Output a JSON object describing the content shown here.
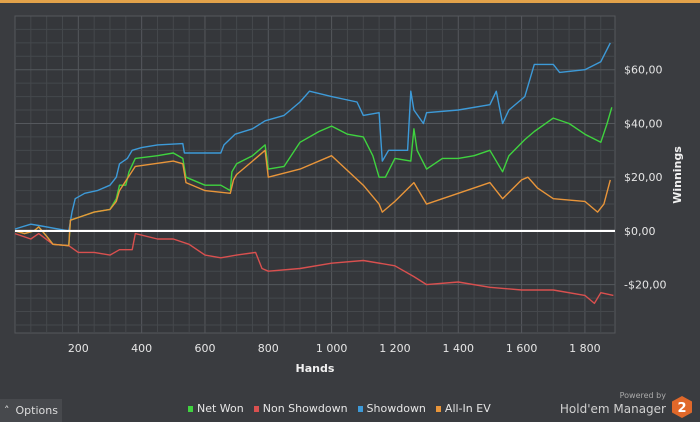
{
  "chart_data": {
    "type": "line",
    "title": "",
    "xlabel": "Hands",
    "ylabel": "Winnings",
    "xlim": [
      0,
      1895
    ],
    "ylim": [
      -38,
      80
    ],
    "x_ticks": [
      200,
      400,
      600,
      800,
      1000,
      1200,
      1400,
      1600,
      1800
    ],
    "x_tick_labels": [
      "200",
      "400",
      "600",
      "800",
      "1 000",
      "1 200",
      "1 400",
      "1 600",
      "1 800"
    ],
    "y_ticks": [
      -20,
      0,
      20,
      40,
      60
    ],
    "y_tick_labels": [
      "-$20,00",
      "$0,00",
      "$20,00",
      "$40,00",
      "$60,00"
    ],
    "grid": true,
    "legend_position": "bottom-center",
    "series": [
      {
        "name": "Net Won",
        "color": "#3fd33f",
        "points": [
          [
            0,
            0
          ],
          [
            30,
            -1
          ],
          [
            60,
            0
          ],
          [
            75,
            1.5
          ],
          [
            100,
            -2
          ],
          [
            120,
            -5
          ],
          [
            170,
            -5.5
          ],
          [
            175,
            4
          ],
          [
            200,
            5
          ],
          [
            250,
            7
          ],
          [
            300,
            8
          ],
          [
            320,
            12
          ],
          [
            330,
            17
          ],
          [
            350,
            17
          ],
          [
            360,
            22
          ],
          [
            380,
            27
          ],
          [
            450,
            28
          ],
          [
            500,
            29
          ],
          [
            530,
            27
          ],
          [
            540,
            20
          ],
          [
            600,
            17
          ],
          [
            650,
            17
          ],
          [
            680,
            15
          ],
          [
            685,
            22
          ],
          [
            700,
            25
          ],
          [
            750,
            28
          ],
          [
            790,
            32
          ],
          [
            800,
            23
          ],
          [
            850,
            24
          ],
          [
            900,
            33
          ],
          [
            960,
            37
          ],
          [
            1000,
            39
          ],
          [
            1050,
            36
          ],
          [
            1100,
            35
          ],
          [
            1130,
            28
          ],
          [
            1150,
            20
          ],
          [
            1170,
            20
          ],
          [
            1200,
            27
          ],
          [
            1250,
            26
          ],
          [
            1260,
            38
          ],
          [
            1270,
            30
          ],
          [
            1300,
            23
          ],
          [
            1350,
            27
          ],
          [
            1400,
            27
          ],
          [
            1450,
            28
          ],
          [
            1500,
            30
          ],
          [
            1540,
            22
          ],
          [
            1560,
            28
          ],
          [
            1610,
            34
          ],
          [
            1640,
            37
          ],
          [
            1700,
            42
          ],
          [
            1750,
            40
          ],
          [
            1800,
            36
          ],
          [
            1850,
            33
          ],
          [
            1870,
            40
          ],
          [
            1885,
            46
          ]
        ]
      },
      {
        "name": "Non Showdown",
        "color": "#d9504f",
        "points": [
          [
            0,
            -1
          ],
          [
            50,
            -3
          ],
          [
            75,
            -1
          ],
          [
            120,
            -5
          ],
          [
            170,
            -5.5
          ],
          [
            200,
            -8
          ],
          [
            250,
            -8
          ],
          [
            300,
            -9
          ],
          [
            330,
            -7
          ],
          [
            370,
            -7
          ],
          [
            380,
            -1
          ],
          [
            450,
            -3
          ],
          [
            500,
            -3
          ],
          [
            550,
            -5
          ],
          [
            600,
            -9
          ],
          [
            650,
            -10
          ],
          [
            700,
            -9
          ],
          [
            760,
            -8
          ],
          [
            780,
            -14
          ],
          [
            800,
            -15
          ],
          [
            900,
            -14
          ],
          [
            1000,
            -12
          ],
          [
            1100,
            -11
          ],
          [
            1200,
            -13
          ],
          [
            1260,
            -17
          ],
          [
            1300,
            -20
          ],
          [
            1400,
            -19
          ],
          [
            1500,
            -21
          ],
          [
            1600,
            -22
          ],
          [
            1700,
            -22
          ],
          [
            1800,
            -24
          ],
          [
            1830,
            -27
          ],
          [
            1850,
            -23
          ],
          [
            1890,
            -24
          ]
        ]
      },
      {
        "name": "Showdown",
        "color": "#3d9ad8",
        "points": [
          [
            0,
            0.7
          ],
          [
            50,
            2.5
          ],
          [
            75,
            2
          ],
          [
            170,
            0
          ],
          [
            180,
            7
          ],
          [
            190,
            12
          ],
          [
            220,
            14
          ],
          [
            260,
            15
          ],
          [
            300,
            17
          ],
          [
            320,
            20
          ],
          [
            330,
            25
          ],
          [
            355,
            27
          ],
          [
            370,
            30
          ],
          [
            400,
            31
          ],
          [
            450,
            32
          ],
          [
            530,
            32.5
          ],
          [
            535,
            29
          ],
          [
            650,
            29
          ],
          [
            660,
            32
          ],
          [
            695,
            36
          ],
          [
            750,
            38
          ],
          [
            790,
            41
          ],
          [
            850,
            43
          ],
          [
            900,
            48
          ],
          [
            930,
            52
          ],
          [
            1000,
            50
          ],
          [
            1080,
            48
          ],
          [
            1100,
            43
          ],
          [
            1150,
            44
          ],
          [
            1160,
            26
          ],
          [
            1180,
            30
          ],
          [
            1240,
            30
          ],
          [
            1250,
            52
          ],
          [
            1260,
            45
          ],
          [
            1290,
            40
          ],
          [
            1300,
            44
          ],
          [
            1400,
            45
          ],
          [
            1500,
            47
          ],
          [
            1520,
            52
          ],
          [
            1540,
            40
          ],
          [
            1560,
            45
          ],
          [
            1610,
            50
          ],
          [
            1640,
            62
          ],
          [
            1700,
            62
          ],
          [
            1720,
            59
          ],
          [
            1800,
            60
          ],
          [
            1850,
            63
          ],
          [
            1880,
            70
          ]
        ]
      },
      {
        "name": "All-In EV",
        "color": "#e8953a",
        "points": [
          [
            0,
            0
          ],
          [
            30,
            -1
          ],
          [
            60,
            0
          ],
          [
            75,
            1.5
          ],
          [
            100,
            -2
          ],
          [
            120,
            -5
          ],
          [
            170,
            -5.5
          ],
          [
            175,
            4
          ],
          [
            200,
            5
          ],
          [
            250,
            7
          ],
          [
            300,
            8
          ],
          [
            320,
            11
          ],
          [
            330,
            15
          ],
          [
            380,
            24
          ],
          [
            500,
            26
          ],
          [
            530,
            25
          ],
          [
            540,
            18
          ],
          [
            600,
            15
          ],
          [
            680,
            14
          ],
          [
            690,
            19
          ],
          [
            700,
            21
          ],
          [
            750,
            26
          ],
          [
            790,
            30
          ],
          [
            800,
            20
          ],
          [
            900,
            23
          ],
          [
            1000,
            28
          ],
          [
            1100,
            17
          ],
          [
            1150,
            10
          ],
          [
            1160,
            7
          ],
          [
            1200,
            11
          ],
          [
            1260,
            18
          ],
          [
            1300,
            10
          ],
          [
            1400,
            14
          ],
          [
            1500,
            18
          ],
          [
            1540,
            12
          ],
          [
            1600,
            19
          ],
          [
            1620,
            20
          ],
          [
            1650,
            16
          ],
          [
            1700,
            12
          ],
          [
            1800,
            11
          ],
          [
            1840,
            7
          ],
          [
            1860,
            10
          ],
          [
            1880,
            19
          ]
        ]
      }
    ]
  },
  "ui": {
    "options_label": "Options",
    "options_icon": "chevron-up-icon",
    "powered_by": "Powered by",
    "brand": "Hold'em Manager",
    "brand_badge": "2",
    "accent": "#e2a24a"
  }
}
